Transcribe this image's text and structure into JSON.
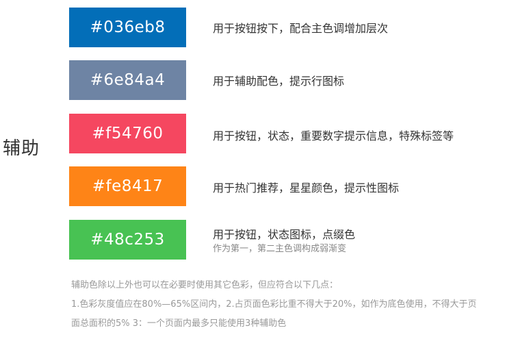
{
  "section_title": "辅助",
  "swatches": [
    {
      "hex": "#036eb8",
      "label": "#036eb8",
      "desc": "用于按钮按下，配合主色调增加层次"
    },
    {
      "hex": "#6e84a4",
      "label": "#6e84a4",
      "desc": "用于辅助配色，提示行图标"
    },
    {
      "hex": "#f54760",
      "label": "#f54760",
      "desc": "用于按钮，状态，重要数字提示信息，特殊标签等"
    },
    {
      "hex": "#fe8417",
      "label": "#fe8417",
      "desc": "用于热门推荐，星星颜色，提示性图标"
    },
    {
      "hex": "#48c253",
      "label": "#48c253",
      "desc": "用于按钮，状态图标，点缀色",
      "sub": "作为第一，第二主色调构成弱渐变"
    }
  ],
  "notes": {
    "line1": "辅助色除以上外也可以在必要时使用其它色彩，但应符合以下几点：",
    "line2": "1.色彩灰度值应在80%—65%区间内，2.占页面色彩比重不得大于20%，如作为底色使用，不得大于页",
    "line3": "面总面积的5%  3：一个页面内最多只能使用3种辅助色"
  }
}
